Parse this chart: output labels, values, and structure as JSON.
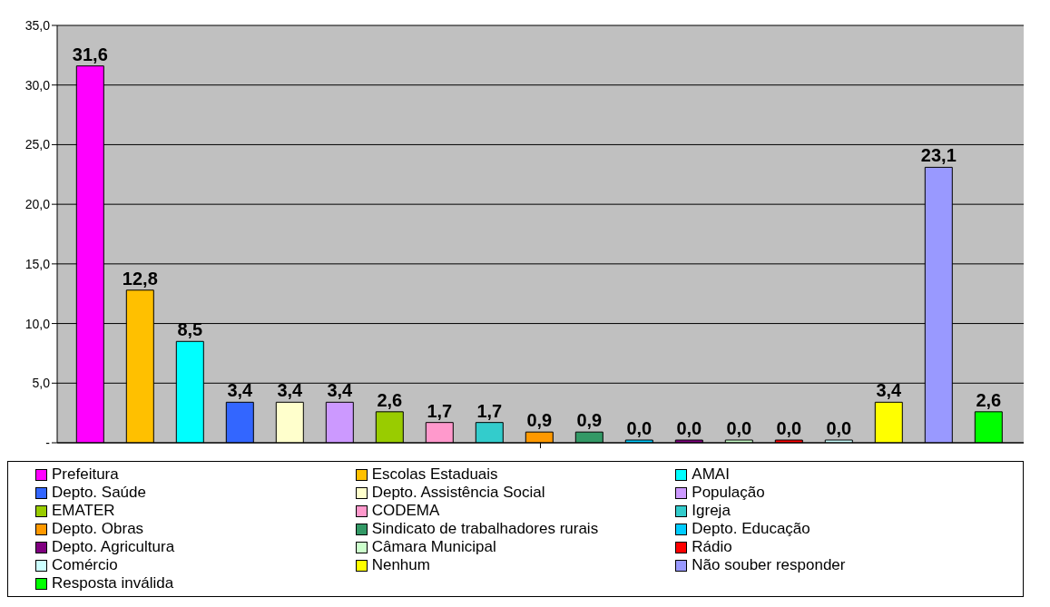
{
  "chart_data": {
    "type": "bar",
    "categories": [
      null
    ],
    "series": [
      {
        "name": "Prefeitura",
        "color": "#ff00ff",
        "values": [
          31.6
        ],
        "value_labels": [
          "31,6"
        ]
      },
      {
        "name": "Escolas Estaduais",
        "color": "#ffc000",
        "values": [
          12.8
        ],
        "value_labels": [
          "12,8"
        ]
      },
      {
        "name": "AMAI",
        "color": "#00ffff",
        "values": [
          8.5
        ],
        "value_labels": [
          "8,5"
        ]
      },
      {
        "name": "Depto. Saúde",
        "color": "#3366ff",
        "values": [
          3.4
        ],
        "value_labels": [
          "3,4"
        ]
      },
      {
        "name": "Depto. Assistência Social",
        "color": "#ffffcc",
        "values": [
          3.4
        ],
        "value_labels": [
          "3,4"
        ]
      },
      {
        "name": "População",
        "color": "#cc99ff",
        "values": [
          3.4
        ],
        "value_labels": [
          "3,4"
        ]
      },
      {
        "name": "EMATER",
        "color": "#99cc00",
        "values": [
          2.6
        ],
        "value_labels": [
          "2,6"
        ]
      },
      {
        "name": "CODEMA",
        "color": "#ff99cc",
        "values": [
          1.7
        ],
        "value_labels": [
          "1,7"
        ]
      },
      {
        "name": "Igreja",
        "color": "#33cccc",
        "values": [
          1.7
        ],
        "value_labels": [
          "1,7"
        ]
      },
      {
        "name": "Depto. Obras",
        "color": "#ff9900",
        "values": [
          0.9
        ],
        "value_labels": [
          "0,9"
        ]
      },
      {
        "name": "Sindicato de trabalhadores rurais",
        "color": "#339966",
        "values": [
          0.9
        ],
        "value_labels": [
          "0,9"
        ]
      },
      {
        "name": "Depto. Educação",
        "color": "#00ccff",
        "values": [
          0
        ],
        "value_labels": [
          "0,0"
        ]
      },
      {
        "name": "Depto. Agricultura",
        "color": "#800080",
        "values": [
          0
        ],
        "value_labels": [
          "0,0"
        ]
      },
      {
        "name": "Câmara Municipal",
        "color": "#ccffcc",
        "values": [
          0
        ],
        "value_labels": [
          "0,0"
        ]
      },
      {
        "name": "Rádio",
        "color": "#ff0000",
        "values": [
          0
        ],
        "value_labels": [
          "0,0"
        ]
      },
      {
        "name": "Comércio",
        "color": "#ccffff",
        "values": [
          0
        ],
        "value_labels": [
          "0,0"
        ]
      },
      {
        "name": "Nenhum",
        "color": "#ffff00",
        "values": [
          3.4
        ],
        "value_labels": [
          "3,4"
        ]
      },
      {
        "name": "Não souber responder",
        "color": "#9999ff",
        "values": [
          23.1
        ],
        "value_labels": [
          "23,1"
        ]
      },
      {
        "name": "Resposta inválida",
        "color": "#00ff00",
        "values": [
          2.6
        ],
        "value_labels": [
          "2,6"
        ]
      }
    ],
    "ylim": [
      0,
      35
    ],
    "yticks": [
      {
        "value": 0,
        "label": "-"
      },
      {
        "value": 5,
        "label": "5,0"
      },
      {
        "value": 10,
        "label": "10,0"
      },
      {
        "value": 15,
        "label": "15,0"
      },
      {
        "value": 20,
        "label": "20,0"
      },
      {
        "value": 25,
        "label": "25,0"
      },
      {
        "value": 30,
        "label": "30,0"
      },
      {
        "value": 35,
        "label": "35,0"
      }
    ],
    "grid": "y",
    "legend": "bottom"
  }
}
